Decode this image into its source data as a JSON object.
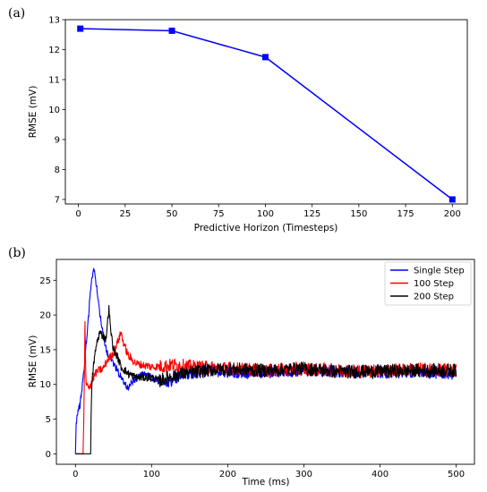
{
  "chart_data": [
    {
      "panel_label": "(a)",
      "type": "line",
      "x": [
        1,
        50,
        100,
        200
      ],
      "series": [
        {
          "values": [
            12.7,
            12.63,
            11.75,
            7.0
          ],
          "color": "#0000ff",
          "marker": "square"
        }
      ],
      "title": "",
      "xlabel": "Predictive Horizon (Timesteps)",
      "ylabel": "RMSE (mV)",
      "xlim": [
        -7,
        208
      ],
      "ylim": [
        6.85,
        13.0
      ],
      "xticks": [
        0,
        25,
        50,
        75,
        100,
        125,
        150,
        175,
        200
      ],
      "yticks": [
        7,
        8,
        9,
        10,
        11,
        12,
        13
      ],
      "grid": false
    },
    {
      "panel_label": "(b)",
      "type": "line",
      "title": "",
      "xlabel": "Time (ms)",
      "ylabel": "RMSE (mV)",
      "xlim": [
        -25,
        524
      ],
      "ylim": [
        -1.5,
        28
      ],
      "xticks": [
        0,
        100,
        200,
        300,
        400,
        500
      ],
      "yticks": [
        0,
        5,
        10,
        15,
        20,
        25
      ],
      "grid": false,
      "legend_position": "top-right",
      "series": [
        {
          "name": "Single Step",
          "color": "#0000ff",
          "points": [
            [
              0,
              0
            ],
            [
              1,
              4.5
            ],
            [
              3,
              6
            ],
            [
              6,
              7
            ],
            [
              9,
              10
            ],
            [
              12,
              13
            ],
            [
              15,
              17
            ],
            [
              18,
              21
            ],
            [
              20,
              24
            ],
            [
              22,
              25.5
            ],
            [
              24,
              26.5
            ],
            [
              26,
              25.5
            ],
            [
              28,
              24
            ],
            [
              31,
              21
            ],
            [
              34,
              19
            ],
            [
              38,
              16
            ],
            [
              42,
              14.5
            ],
            [
              46,
              14
            ],
            [
              50,
              13
            ],
            [
              55,
              12
            ],
            [
              60,
              11
            ],
            [
              65,
              10
            ],
            [
              70,
              9.5
            ],
            [
              75,
              10.5
            ],
            [
              82,
              11
            ],
            [
              90,
              11.5
            ],
            [
              100,
              11
            ],
            [
              110,
              10.5
            ],
            [
              120,
              10
            ],
            [
              130,
              11
            ],
            [
              150,
              11.5
            ],
            [
              175,
              12
            ],
            [
              200,
              11.8
            ],
            [
              250,
              11.7
            ],
            [
              300,
              12
            ],
            [
              350,
              11.8
            ],
            [
              400,
              11.7
            ],
            [
              450,
              11.8
            ],
            [
              500,
              11.5
            ]
          ],
          "noise": 0.9
        },
        {
          "name": "100 Step",
          "color": "#ff0000",
          "points": [
            [
              0,
              0
            ],
            [
              10,
              0
            ],
            [
              11,
              5
            ],
            [
              12,
              13
            ],
            [
              12.6,
              20.2
            ],
            [
              13.2,
              13
            ],
            [
              14,
              10
            ],
            [
              17,
              9.5
            ],
            [
              20,
              10
            ],
            [
              26,
              11.5
            ],
            [
              30,
              12
            ],
            [
              36,
              12.2
            ],
            [
              42,
              13.5
            ],
            [
              50,
              14.5
            ],
            [
              55,
              16
            ],
            [
              60,
              17.5
            ],
            [
              63,
              16
            ],
            [
              70,
              14
            ],
            [
              80,
              13
            ],
            [
              100,
              12.5
            ],
            [
              130,
              12.8
            ],
            [
              160,
              12.5
            ],
            [
              200,
              12.3
            ],
            [
              250,
              12
            ],
            [
              300,
              12.2
            ],
            [
              350,
              12
            ],
            [
              400,
              11.9
            ],
            [
              450,
              12.2
            ],
            [
              500,
              12
            ]
          ],
          "noise": 1.0
        },
        {
          "name": "200 Step",
          "color": "#000000",
          "points": [
            [
              0,
              0
            ],
            [
              20,
              0
            ],
            [
              20.5,
              5
            ],
            [
              21.5,
              10
            ],
            [
              24,
              13
            ],
            [
              28,
              16
            ],
            [
              32,
              17.5
            ],
            [
              36,
              17
            ],
            [
              40,
              16.5
            ],
            [
              44,
              21
            ],
            [
              46,
              18
            ],
            [
              50,
              15
            ],
            [
              55,
              14
            ],
            [
              60,
              12.5
            ],
            [
              70,
              11.5
            ],
            [
              80,
              11
            ],
            [
              90,
              11
            ],
            [
              100,
              11
            ],
            [
              110,
              10.5
            ],
            [
              120,
              11
            ],
            [
              140,
              11.5
            ],
            [
              170,
              12
            ],
            [
              200,
              12.2
            ],
            [
              250,
              12
            ],
            [
              300,
              12.3
            ],
            [
              350,
              11.8
            ],
            [
              400,
              11.9
            ],
            [
              450,
              12
            ],
            [
              500,
              12
            ]
          ],
          "noise": 1.0
        }
      ]
    }
  ]
}
